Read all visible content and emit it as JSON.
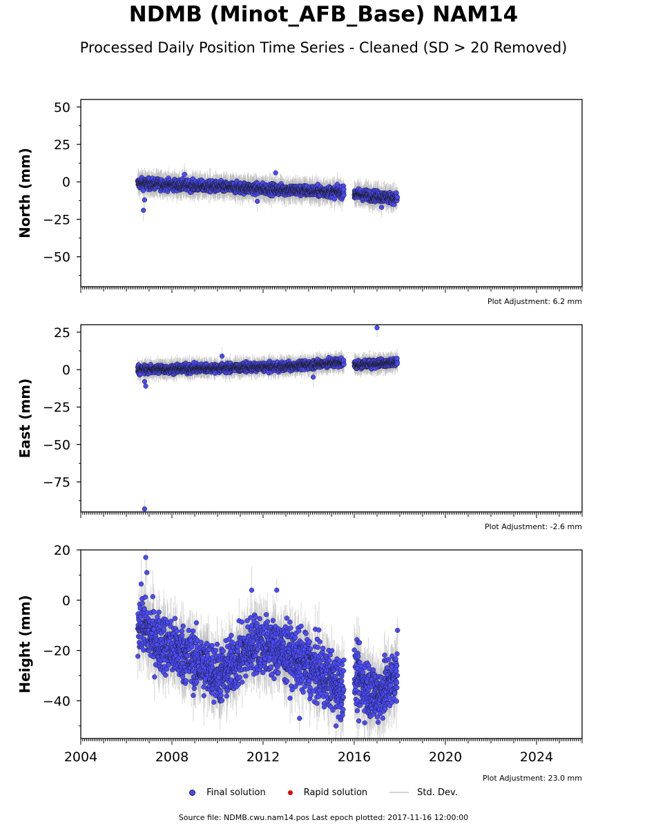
{
  "title": "NDMB (Minot_AFB_Base) NAM14",
  "subtitle": "Processed Daily Position Time Series - Cleaned (SD > 20 Removed)",
  "colors": {
    "final": "#4b4bff",
    "rapid": "#e00000",
    "std_dev": "#bbbbbb",
    "edge": "#1a1a1a"
  },
  "legend": {
    "final": "Final solution",
    "rapid": "Rapid solution",
    "std": "Std. Dev."
  },
  "source_text": "Source file: NDMB.cwu.nam14.pos  Last epoch plotted: 2017-11-16 12:00:00",
  "chart_data": [
    {
      "type": "scatter",
      "ylabel": "North (mm)",
      "xlim": [
        2004,
        2026
      ],
      "ylim": [
        -70,
        55
      ],
      "yticks": [
        50,
        25,
        0,
        -25,
        -50
      ],
      "ytick_labels": [
        "50",
        "25",
        "0",
        "−25",
        "−50"
      ],
      "adjustment": "Plot Adjustment: 6.2 mm",
      "trend": [
        [
          2006.5,
          -1
        ],
        [
          2015.5,
          -7
        ],
        [
          2016.0,
          -8
        ],
        [
          2017.9,
          -11
        ]
      ],
      "spread": 2.5,
      "err": 5,
      "outliers": [
        [
          2006.75,
          -19
        ],
        [
          2006.8,
          -12
        ],
        [
          2008.55,
          5
        ],
        [
          2012.55,
          6
        ],
        [
          2011.75,
          -13
        ],
        [
          2017.2,
          -17
        ]
      ]
    },
    {
      "type": "scatter",
      "ylabel": "East (mm)",
      "xlim": [
        2004,
        2026
      ],
      "ylim": [
        -95,
        30
      ],
      "yticks": [
        25,
        0,
        -25,
        -50,
        -75
      ],
      "ytick_labels": [
        "25",
        "0",
        "−25",
        "−50",
        "−75"
      ],
      "adjustment": "Plot Adjustment: -2.6 mm",
      "trend": [
        [
          2006.5,
          0
        ],
        [
          2013.0,
          2
        ],
        [
          2015.5,
          5
        ],
        [
          2016.0,
          3
        ],
        [
          2017.9,
          5
        ]
      ],
      "spread": 2,
      "err": 4,
      "outliers": [
        [
          2006.8,
          -93
        ],
        [
          2006.85,
          -11
        ],
        [
          2006.8,
          -8
        ],
        [
          2017.0,
          28
        ],
        [
          2010.2,
          9
        ],
        [
          2014.2,
          -5
        ]
      ]
    },
    {
      "type": "scatter",
      "ylabel": "Height (mm)",
      "xlim": [
        2004,
        2026
      ],
      "ylim": [
        -55,
        20
      ],
      "yticks": [
        20,
        0,
        -20,
        -40
      ],
      "ytick_labels": [
        "20",
        "0",
        "−20",
        "−40"
      ],
      "xticks": [
        2004,
        2008,
        2012,
        2016,
        2020,
        2024
      ],
      "xtick_labels": [
        "2004",
        "2008",
        "2012",
        "2016",
        "2020",
        "2024"
      ],
      "adjustment": "Plot Adjustment: 23.0 mm",
      "trend": [
        [
          2006.5,
          -8
        ],
        [
          2007.2,
          -15
        ],
        [
          2009.0,
          -24
        ],
        [
          2010.2,
          -30
        ],
        [
          2011.6,
          -17
        ],
        [
          2012.8,
          -20
        ],
        [
          2014.0,
          -26
        ],
        [
          2015.5,
          -35
        ],
        [
          2016.0,
          -30
        ],
        [
          2017.0,
          -38
        ],
        [
          2017.9,
          -30
        ]
      ],
      "spread": 8,
      "err": 7,
      "outliers": [
        [
          2006.85,
          17
        ],
        [
          2006.9,
          11
        ],
        [
          2011.5,
          4
        ],
        [
          2012.6,
          4
        ],
        [
          2013.6,
          -47
        ],
        [
          2015.2,
          -50
        ],
        [
          2016.2,
          -48
        ],
        [
          2017.9,
          -12
        ]
      ]
    }
  ]
}
